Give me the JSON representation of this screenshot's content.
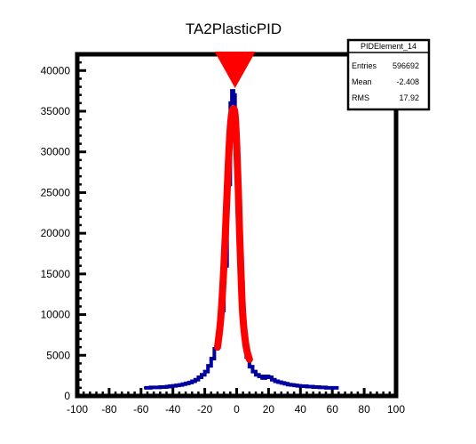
{
  "chart_data": {
    "type": "histogram",
    "title": "TA2PlasticPID",
    "xlabel": "",
    "ylabel": "",
    "xlim": [
      -100,
      100
    ],
    "ylim": [
      0,
      42000
    ],
    "x_ticks": [
      -100,
      -80,
      -60,
      -40,
      -20,
      0,
      20,
      40,
      60,
      80,
      100
    ],
    "y_ticks": [
      0,
      5000,
      10000,
      15000,
      20000,
      25000,
      30000,
      35000,
      40000
    ],
    "grid": false,
    "histogram": {
      "color": "#0000a0",
      "x": [
        -58,
        -56,
        -54,
        -52,
        -50,
        -48,
        -46,
        -44,
        -42,
        -40,
        -38,
        -36,
        -34,
        -32,
        -30,
        -28,
        -26,
        -24,
        -22,
        -20,
        -18,
        -16,
        -14,
        -12,
        -10,
        -8,
        -6,
        -4,
        -3,
        -2,
        -1,
        0,
        2,
        4,
        6,
        8,
        10,
        12,
        14,
        16,
        18,
        20,
        22,
        24,
        26,
        28,
        30,
        32,
        34,
        36,
        38,
        40,
        42,
        44,
        46,
        48,
        50,
        52,
        54,
        56,
        58,
        60,
        62
      ],
      "y": [
        1000,
        1000,
        1050,
        1050,
        1050,
        1100,
        1100,
        1150,
        1200,
        1250,
        1300,
        1350,
        1450,
        1550,
        1650,
        1800,
        2000,
        2300,
        2600,
        3000,
        3700,
        4600,
        5800,
        7500,
        10500,
        16000,
        26000,
        36000,
        37500,
        37000,
        33000,
        25000,
        14000,
        7500,
        4800,
        3600,
        3000,
        2600,
        2400,
        2200,
        2400,
        2300,
        2000,
        1800,
        1700,
        1600,
        1500,
        1400,
        1350,
        1300,
        1250,
        1200,
        1200,
        1150,
        1150,
        1100,
        1100,
        1050,
        1050,
        1000,
        1000,
        1000,
        1000
      ]
    },
    "fit": {
      "color": "#ff0000",
      "x": [
        -12,
        -10,
        -8,
        -6,
        -5,
        -4,
        -3,
        -2,
        -1,
        0,
        1,
        2,
        3,
        4,
        6,
        8
      ],
      "y": [
        6000,
        9500,
        16000,
        25000,
        29500,
        33000,
        34800,
        35300,
        34600,
        31000,
        25500,
        19000,
        13500,
        9500,
        6000,
        4500
      ]
    },
    "marker": {
      "x": -1,
      "y": 42000,
      "color": "#ff0000",
      "shape": "downward-triangle"
    },
    "stats_box": {
      "title": "PIDElement_14",
      "rows": [
        {
          "label": "Entries",
          "value": "596692"
        },
        {
          "label": "Mean",
          "value": "-2.408"
        },
        {
          "label": "RMS",
          "value": "17.92"
        }
      ]
    }
  }
}
